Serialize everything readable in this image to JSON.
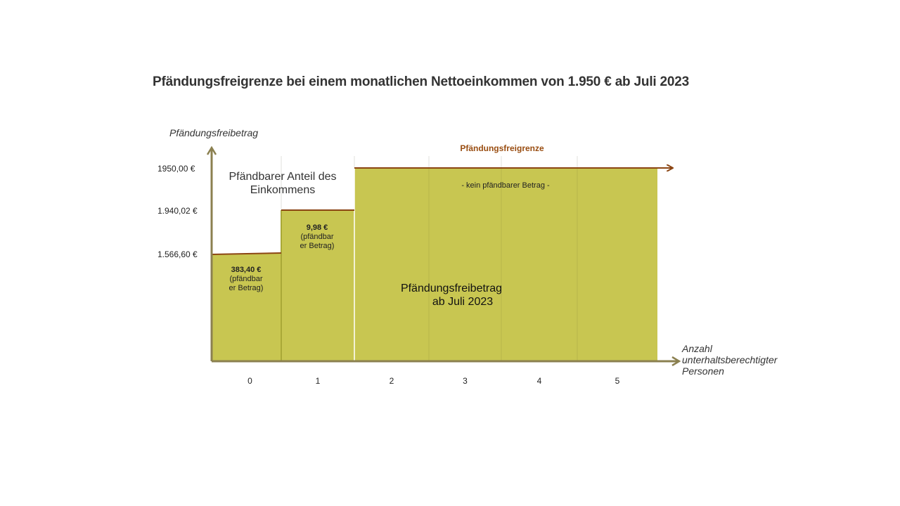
{
  "chart_data": {
    "type": "bar",
    "title": "Pfändungsfreigrenze bei einem monatlichen Nettoeinkommen von 1.950 € ab Juli 2023",
    "ylabel": "Pfändungsfreibetrag",
    "xlabel": "Anzahl unterhaltsberechtigter Personen",
    "xlabel_lines": [
      "Anzahl",
      "unterhaltsberechtigter",
      "Personen"
    ],
    "categories": [
      "0",
      "1",
      "2",
      "3",
      "4",
      "5"
    ],
    "values": [
      1566.6,
      1940.02,
      1950.0,
      1950.0,
      1950.0,
      1950.0
    ],
    "ytick_labels": [
      {
        "value": 1950.0,
        "label": "1950,00 €"
      },
      {
        "value": 1940.02,
        "label": "1.940,02 €"
      },
      {
        "value": 1566.6,
        "label": "1.566,60 €"
      }
    ],
    "limit": {
      "value": 1950.0,
      "label": "Pfändungsfreigrenze"
    },
    "seizable": [
      {
        "category": "0",
        "lines": [
          "383,40 €",
          "(pfändbar",
          "er Betrag)"
        ]
      },
      {
        "category": "1",
        "lines": [
          "9,98 €",
          "(pfändbar",
          "er Betrag)"
        ]
      }
    ],
    "annotations": {
      "pfaendbar_anteil_lines": [
        "Pfändbarer Anteil des",
        "Einkommens"
      ],
      "kein_betrag": "- kein pfändbarer Betrag -",
      "freibetrag_lines": [
        "Pfändungsfreibetrag",
        "ab Juli 2023"
      ]
    },
    "colors": {
      "bar": "#c8c651",
      "axis": "#8b8050",
      "limit_line": "#8b4513",
      "limit_label": "#994d11",
      "text": "#333333"
    }
  }
}
